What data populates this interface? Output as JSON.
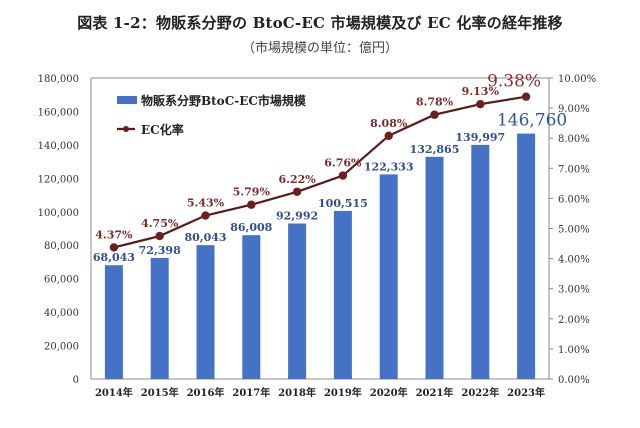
{
  "header": {
    "title": "図表 1-2：物販系分野の BtoC-EC 市場規模及び EC 化率の経年推移",
    "subtitle": "（市場規模の単位：億円）"
  },
  "colors": {
    "bar": "#4472C4",
    "line": "#5C1A1A",
    "marker": "#6B1F1F",
    "axis": "#8C8C8C"
  },
  "chart_data": {
    "type": "bar",
    "title": "図表 1-2：物販系分野の BtoC-EC 市場規模及び EC 化率の経年推移",
    "subtitle": "（市場規模の単位：億円）",
    "categories": [
      "2014年",
      "2015年",
      "2016年",
      "2017年",
      "2018年",
      "2019年",
      "2020年",
      "2021年",
      "2022年",
      "2023年"
    ],
    "series": [
      {
        "name": "物販系分野BtoC-EC市場規模",
        "type": "bar",
        "axis": "left",
        "values": [
          68043,
          72398,
          80043,
          86008,
          92992,
          100515,
          122333,
          132865,
          139997,
          146760
        ],
        "labels": [
          "68,043",
          "72,398",
          "80,043",
          "86,008",
          "92,992",
          "100,515",
          "122,333",
          "132,865",
          "139,997",
          "146,760"
        ]
      },
      {
        "name": "EC化率",
        "type": "line",
        "axis": "right",
        "values": [
          4.37,
          4.75,
          5.43,
          5.79,
          6.22,
          6.76,
          8.08,
          8.78,
          9.13,
          9.38
        ],
        "labels": [
          "4.37%",
          "4.75%",
          "5.43%",
          "5.79%",
          "6.22%",
          "6.76%",
          "8.08%",
          "8.78%",
          "9.13%",
          "9.38%"
        ]
      }
    ],
    "y_left": {
      "ylim": [
        0,
        180000
      ],
      "ticks": [
        0,
        20000,
        40000,
        60000,
        80000,
        100000,
        120000,
        140000,
        160000,
        180000
      ],
      "tick_labels": [
        "0",
        "20,000",
        "40,000",
        "60,000",
        "80,000",
        "100,000",
        "120,000",
        "140,000",
        "160,000",
        "180,000"
      ]
    },
    "y_right": {
      "ylim": [
        0,
        10
      ],
      "ticks": [
        0,
        1,
        2,
        3,
        4,
        5,
        6,
        7,
        8,
        9,
        10
      ],
      "tick_labels": [
        "0.00%",
        "1.00%",
        "2.00%",
        "3.00%",
        "4.00%",
        "5.00%",
        "6.00%",
        "7.00%",
        "8.00%",
        "9.00%",
        "10.00%"
      ]
    },
    "xlabel": "",
    "ylabel": "",
    "grid": false,
    "legend": {
      "placement": "top-left",
      "entries": [
        "物販系分野BtoC-EC市場規模",
        "EC化率"
      ]
    },
    "highlight_last": true
  }
}
